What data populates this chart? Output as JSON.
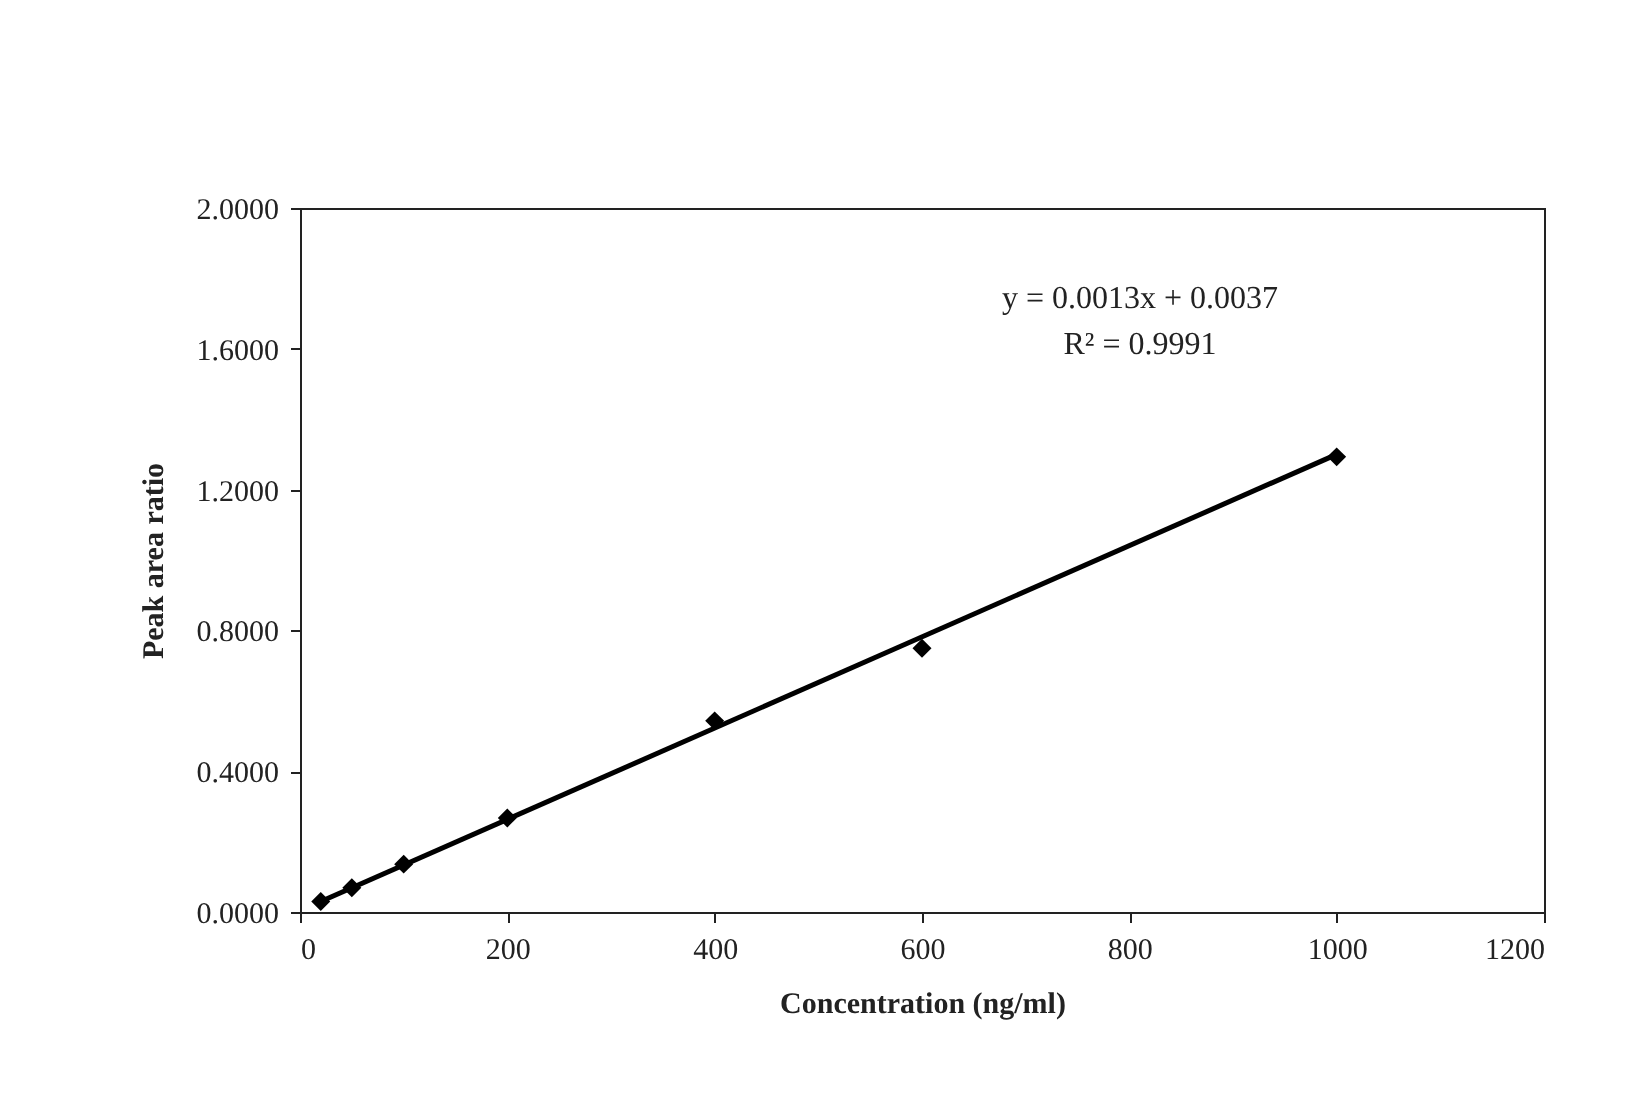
{
  "chart_data": {
    "type": "scatter",
    "xlabel": "Concentration (ng/ml)",
    "ylabel": "Peak area ratio",
    "x": [
      20,
      50,
      100,
      200,
      400,
      600,
      1000
    ],
    "series": [
      {
        "color": "#000000",
        "marker": "diamond",
        "values": [
          0.03,
          0.069,
          0.136,
          0.267,
          0.543,
          0.749,
          1.293
        ]
      },
      {
        "type": "line",
        "color": "#000000",
        "x": [
          20,
          1000
        ],
        "values": [
          0.03,
          1.3
        ]
      }
    ],
    "xlim": [
      0,
      1200
    ],
    "xticks": [
      0,
      200,
      400,
      600,
      800,
      1000,
      1200
    ],
    "ylim": [
      0,
      2
    ],
    "yticks": [
      {
        "value": 0,
        "label": "0.0000"
      },
      {
        "value": 0.4,
        "label": "0.4000"
      },
      {
        "value": 0.8,
        "label": "0.8000"
      },
      {
        "value": 1.2,
        "label": "1.2000"
      },
      {
        "value": 1.6,
        "label": "1.6000"
      },
      {
        "value": 2,
        "label": "2.0000"
      }
    ],
    "grid": false,
    "annotations": [
      "y = 0.0013x + 0.0037",
      "R² = 0.9991"
    ]
  }
}
